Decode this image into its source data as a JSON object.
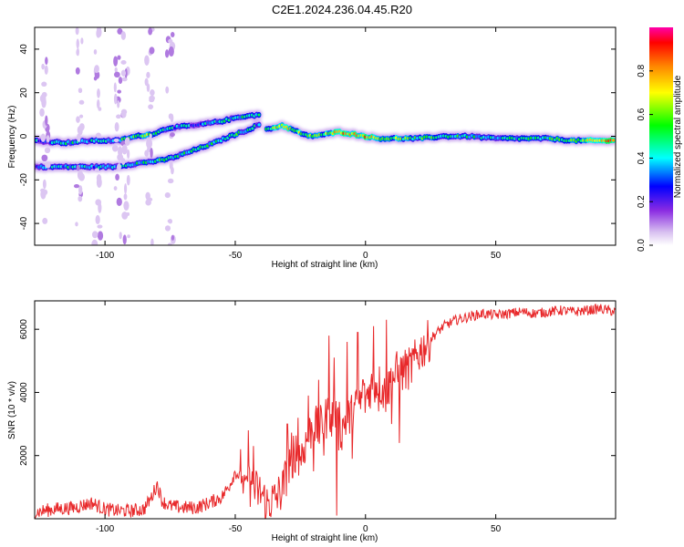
{
  "page": {
    "title": "C2E1.2024.236.04.45.R20"
  },
  "colorbar": {
    "label": "Normalized spectral amplitude",
    "ticks": [
      "0.0",
      "0.2",
      "0.4",
      "0.6",
      "0.8"
    ],
    "tick_values": [
      0.0,
      0.2,
      0.4,
      0.6,
      0.8
    ],
    "range": [
      0,
      1
    ],
    "colormap": [
      "#ffffff",
      "#d8c0f0",
      "#8a2be2",
      "#0000ff",
      "#00ffff",
      "#00ff00",
      "#ffff00",
      "#ff8800",
      "#ff0000",
      "#ff00aa"
    ]
  },
  "chart_data": [
    {
      "type": "heatmap",
      "xlabel": "Height of straight line (km)",
      "ylabel": "Frequency (Hz)",
      "xlim": [
        -127,
        96
      ],
      "ylim": [
        -50,
        50
      ],
      "x_ticks": [
        -100,
        -50,
        0,
        50
      ],
      "x_tick_labels": [
        "-100",
        "-50",
        "0",
        "50"
      ],
      "y_ticks": [
        -40,
        -20,
        0,
        20,
        40
      ],
      "y_tick_labels": [
        "-40",
        "-20",
        "0",
        "20",
        "40"
      ],
      "tracks": [
        {
          "name": "upper branch",
          "points": [
            [
              -127,
              -2
            ],
            [
              -115,
              -3
            ],
            [
              -105,
              -2
            ],
            [
              -95,
              -2
            ],
            [
              -88,
              0
            ],
            [
              -82,
              1
            ],
            [
              -75,
              4
            ],
            [
              -65,
              5
            ],
            [
              -55,
              7
            ],
            [
              -48,
              9
            ],
            [
              -40,
              10
            ]
          ],
          "amplitudes": [
            0.35,
            0.45,
            0.4,
            0.45,
            0.55,
            0.6,
            0.4,
            0.35,
            0.4,
            0.45,
            0.4
          ]
        },
        {
          "name": "lower branch",
          "points": [
            [
              -127,
              -14
            ],
            [
              -115,
              -14
            ],
            [
              -105,
              -14
            ],
            [
              -97,
              -14
            ],
            [
              -85,
              -12
            ],
            [
              -78,
              -11
            ],
            [
              -72,
              -9
            ],
            [
              -65,
              -6
            ],
            [
              -58,
              -3
            ],
            [
              -52,
              0
            ],
            [
              -45,
              3
            ],
            [
              -40,
              6
            ]
          ],
          "amplitudes": [
            0.35,
            0.4,
            0.4,
            0.35,
            0.45,
            0.5,
            0.45,
            0.5,
            0.45,
            0.5,
            0.45,
            0.4
          ]
        },
        {
          "name": "main trace",
          "points": [
            [
              -38,
              3
            ],
            [
              -32,
              5
            ],
            [
              -28,
              3
            ],
            [
              -22,
              0
            ],
            [
              -15,
              1
            ],
            [
              -10,
              2
            ],
            [
              -5,
              1
            ],
            [
              0,
              0
            ],
            [
              5,
              -1
            ],
            [
              10,
              -1
            ],
            [
              20,
              -1
            ],
            [
              30,
              0
            ],
            [
              40,
              0
            ],
            [
              50,
              -1
            ],
            [
              60,
              -1
            ],
            [
              70,
              -1
            ],
            [
              80,
              -2
            ],
            [
              90,
              -2
            ],
            [
              96,
              -2
            ]
          ],
          "amplitudes": [
            0.5,
            0.75,
            0.65,
            0.55,
            0.6,
            0.85,
            0.75,
            0.8,
            0.65,
            0.6,
            0.5,
            0.5,
            0.45,
            0.45,
            0.45,
            0.5,
            0.55,
            0.75,
            0.85
          ]
        }
      ],
      "noise_columns_km": [
        -123,
        -110,
        -103,
        -95,
        -92,
        -83,
        -75
      ]
    },
    {
      "type": "line",
      "xlabel": "Height of straight line (km)",
      "ylabel": "SNR (10 * v/v)",
      "xlim": [
        -127,
        96
      ],
      "ylim": [
        0,
        6900
      ],
      "x_ticks": [
        -100,
        -50,
        0,
        50
      ],
      "x_tick_labels": [
        "-100",
        "-50",
        "0",
        "50"
      ],
      "y_ticks": [
        2000,
        4000,
        6000
      ],
      "y_tick_labels": [
        "2000",
        "4000",
        "6000"
      ],
      "color": "#e8282a",
      "series": [
        {
          "x": [
            -127,
            -120,
            -112,
            -105,
            -100,
            -95,
            -90,
            -85,
            -82,
            -80,
            -78,
            -75,
            -70,
            -65,
            -60,
            -55,
            -52,
            -50,
            -48,
            -45,
            -42,
            -40,
            -38,
            -35,
            -32,
            -30,
            -28,
            -25,
            -23,
            -20,
            -18,
            -15,
            -12,
            -10,
            -8,
            -5,
            -3,
            0,
            2,
            5,
            8,
            10,
            12,
            15,
            18,
            20,
            25,
            30,
            35,
            40,
            45,
            50,
            55,
            60,
            65,
            70,
            75,
            80,
            85,
            90,
            96
          ],
          "y": [
            200,
            300,
            350,
            500,
            300,
            250,
            250,
            300,
            700,
            1100,
            550,
            400,
            350,
            350,
            500,
            700,
            1100,
            1500,
            1300,
            1100,
            900,
            800,
            500,
            600,
            900,
            1500,
            2200,
            2000,
            2400,
            3000,
            2800,
            3200,
            3500,
            2600,
            3100,
            3300,
            3600,
            3800,
            4200,
            4300,
            3900,
            4500,
            4500,
            4700,
            4800,
            5200,
            5700,
            6100,
            6300,
            6400,
            6500,
            6450,
            6500,
            6550,
            6500,
            6550,
            6600,
            6550,
            6600,
            6650,
            6550
          ],
          "spikes": [
            [
              -48,
              2200
            ],
            [
              -47,
              800
            ],
            [
              -45,
              2800
            ],
            [
              -44,
              1200
            ],
            [
              -43,
              2300
            ],
            [
              -41,
              900
            ],
            [
              -38,
              200
            ],
            [
              -30,
              3000
            ],
            [
              -28,
              1300
            ],
            [
              -26,
              3200
            ],
            [
              -24,
              1800
            ],
            [
              -22,
              3900
            ],
            [
              -20,
              1500
            ],
            [
              -18,
              4400
            ],
            [
              -16,
              2000
            ],
            [
              -14,
              5800
            ],
            [
              -13,
              2600
            ],
            [
              -12,
              5100
            ],
            [
              -11,
              100
            ],
            [
              -10,
              3700
            ],
            [
              -7,
              5600
            ],
            [
              -5,
              1900
            ],
            [
              -3,
              5900
            ],
            [
              -1,
              4400
            ],
            [
              3,
              6100
            ],
            [
              5,
              3400
            ],
            [
              8,
              6300
            ],
            [
              10,
              3000
            ],
            [
              12,
              5300
            ],
            [
              13,
              2400
            ],
            [
              15,
              4900
            ],
            [
              18,
              5400
            ]
          ]
        }
      ]
    }
  ]
}
